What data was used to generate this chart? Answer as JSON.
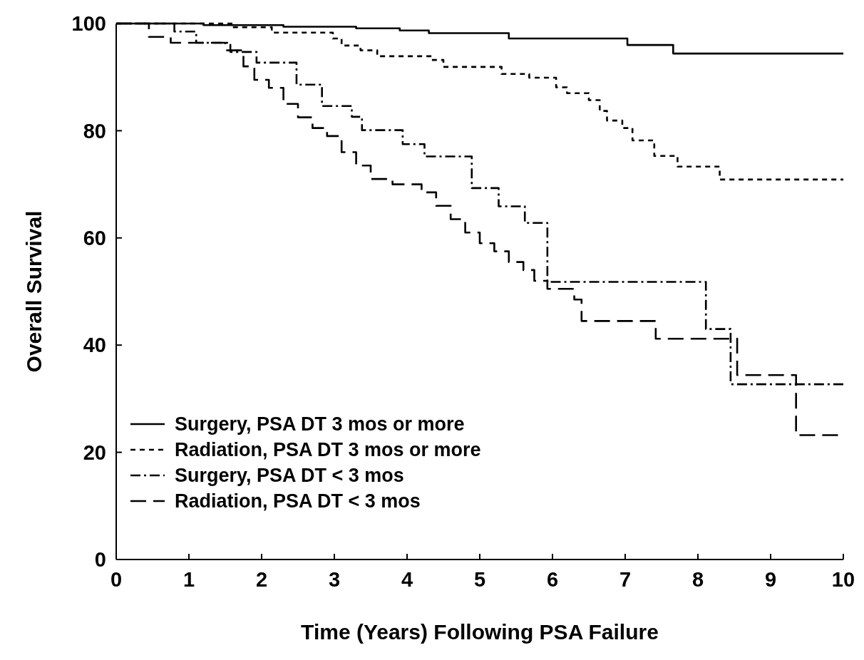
{
  "chart_data": {
    "type": "step",
    "xlabel": "Time (Years) Following PSA Failure",
    "ylabel": "Overall Survival",
    "xlim": [
      0,
      10
    ],
    "ylim": [
      0,
      100
    ],
    "xticks": [
      0,
      1,
      2,
      3,
      4,
      5,
      6,
      7,
      8,
      9,
      10
    ],
    "yticks": [
      0,
      20,
      40,
      60,
      80,
      100
    ],
    "grid": false,
    "legend": "bottom left",
    "marker": "none",
    "series": [
      {
        "name": "Surgery, PSA DT 3 mos or more",
        "color": "#000000",
        "line_style": "solid",
        "x": [
          0,
          1.2,
          2.3,
          3.3,
          3.9,
          4.3,
          5.4,
          7.03,
          7.66,
          10
        ],
        "values": [
          100,
          99.7,
          99.4,
          99.1,
          98.7,
          98.2,
          97.2,
          96.0,
          94.4,
          94.4
        ]
      },
      {
        "name": "Radiation, PSA DT 3 mos or more",
        "color": "#000000",
        "line_style": "dotted",
        "x": [
          0,
          1.6,
          2.14,
          2.98,
          3.1,
          3.36,
          3.59,
          4.34,
          4.5,
          5.3,
          5.68,
          6.05,
          6.2,
          6.5,
          6.65,
          6.75,
          6.96,
          7.1,
          7.4,
          7.72,
          8.3,
          10
        ],
        "values": [
          100,
          99.3,
          98.3,
          97.2,
          95.9,
          95,
          93.9,
          93.2,
          91.9,
          90.6,
          89.9,
          88.1,
          87,
          85.7,
          83.7,
          81.9,
          80.5,
          78.2,
          75.3,
          73.3,
          70.9,
          70.9
        ]
      },
      {
        "name": "Surgery, PSA DT < 3 mos",
        "color": "#000000",
        "line_style": "dashdot",
        "x": [
          0,
          0.8,
          1.1,
          1.57,
          1.93,
          2.48,
          2.83,
          3.24,
          3.38,
          3.94,
          4.24,
          4.89,
          5.26,
          5.62,
          5.93,
          8.11,
          8.45,
          10
        ],
        "values": [
          100,
          98.5,
          96.4,
          94.7,
          92.7,
          88.6,
          84.6,
          82.6,
          80.1,
          77.5,
          75.2,
          69.3,
          65.9,
          62.8,
          51.8,
          43.0,
          32.7,
          32.7
        ]
      },
      {
        "name": "Radiation, PSA DT < 3 mos",
        "color": "#000000",
        "line_style": "dashed",
        "x": [
          0,
          0.45,
          0.75,
          1.5,
          1.75,
          1.9,
          2.1,
          2.3,
          2.5,
          2.7,
          2.9,
          3.1,
          3.3,
          3.5,
          3.8,
          4.2,
          4.4,
          4.6,
          4.8,
          5.0,
          5.2,
          5.4,
          5.6,
          5.75,
          5.93,
          6.3,
          6.4,
          7.42,
          8.54,
          9.35,
          10
        ],
        "values": [
          100,
          97.5,
          96.4,
          95,
          92,
          89.5,
          88,
          85,
          82.5,
          80.5,
          79,
          76,
          73.5,
          71,
          70,
          68.5,
          66,
          63.5,
          61,
          59,
          57.5,
          55.5,
          54,
          52,
          50.5,
          48.5,
          44.5,
          41.2,
          34.4,
          23.2,
          23.2
        ]
      }
    ]
  }
}
